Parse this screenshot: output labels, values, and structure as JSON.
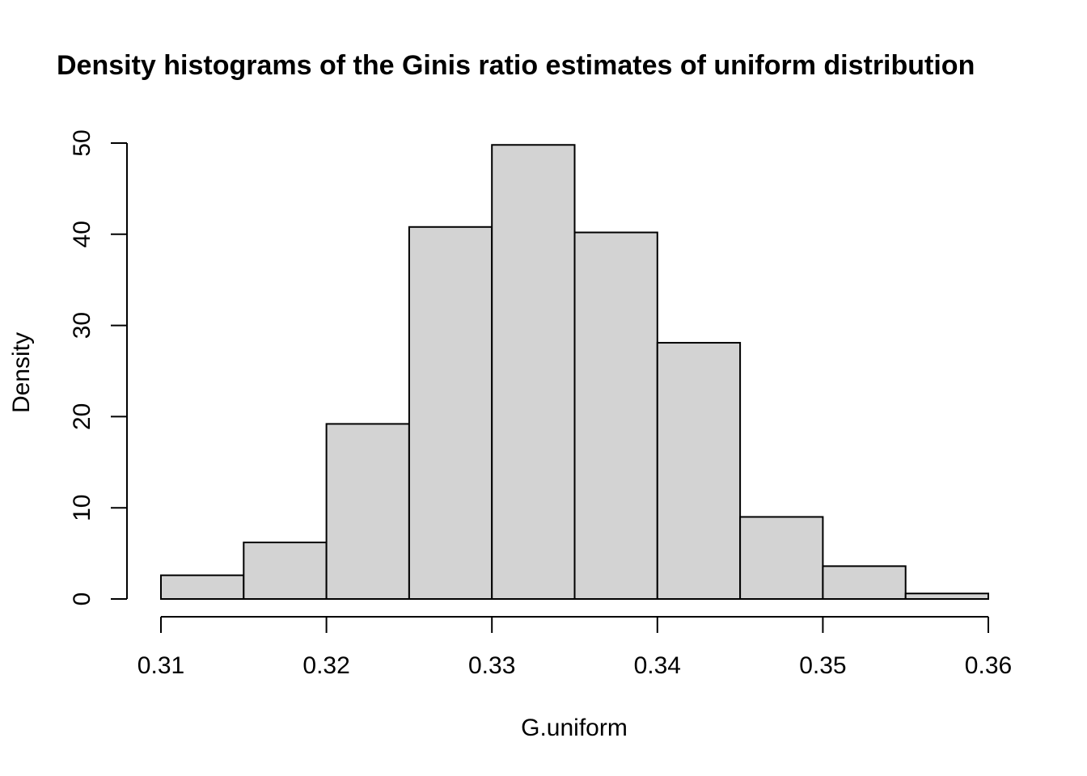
{
  "chart_data": {
    "type": "bar",
    "title": "Density histograms of the Ginis ratio estimates of uniform distribution",
    "xlabel": "G.uniform",
    "ylabel": "Density",
    "bin_edges": [
      0.31,
      0.315,
      0.32,
      0.325,
      0.33,
      0.335,
      0.34,
      0.345,
      0.35,
      0.355,
      0.36
    ],
    "values": [
      2.6,
      6.2,
      19.2,
      40.8,
      49.8,
      40.2,
      28.1,
      9.0,
      3.6,
      0.6
    ],
    "xlim": [
      0.31,
      0.36
    ],
    "ylim": [
      0,
      50
    ],
    "x_ticks": [
      0.31,
      0.32,
      0.33,
      0.34,
      0.35,
      0.36
    ],
    "x_tick_labels": [
      "0.31",
      "0.32",
      "0.33",
      "0.34",
      "0.35",
      "0.36"
    ],
    "y_ticks": [
      0,
      10,
      20,
      30,
      40,
      50
    ],
    "y_tick_labels": [
      "0",
      "10",
      "20",
      "30",
      "40",
      "50"
    ],
    "bar_color": "#d3d3d3",
    "bar_border_color": "#000000",
    "grid": false,
    "legend": "none"
  }
}
